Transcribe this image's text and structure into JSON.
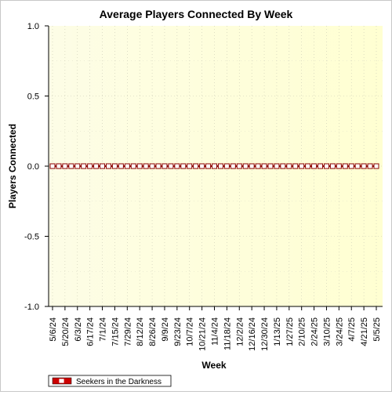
{
  "chart_data": {
    "type": "line",
    "title": "Average Players Connected By Week",
    "xlabel": "Week",
    "ylabel": "Players Connected",
    "ylim": [
      -1.0,
      1.0
    ],
    "y_ticks": [
      "1.0",
      "0.5",
      "0.0",
      "-0.5",
      "-1.0"
    ],
    "y_tick_values": [
      1.0,
      0.5,
      0.0,
      -0.5,
      -1.0
    ],
    "x_tick_labels": [
      "5/6/24",
      "5/20/24",
      "6/3/24",
      "6/17/24",
      "7/1/24",
      "7/15/24",
      "7/29/24",
      "8/12/24",
      "8/26/24",
      "9/9/24",
      "9/23/24",
      "10/7/24",
      "10/21/24",
      "11/4/24",
      "11/18/24",
      "12/2/24",
      "12/16/24",
      "12/30/24",
      "1/13/25",
      "1/27/25",
      "2/10/25",
      "2/24/25",
      "3/10/25",
      "3/24/25",
      "4/7/25",
      "4/21/25",
      "5/5/25"
    ],
    "grid": true,
    "legend_position": "bottom-left",
    "series": [
      {
        "name": "Seekers in the Darkness",
        "color": "#cc0000",
        "x": [
          "5/6/24",
          "5/13/24",
          "5/20/24",
          "5/27/24",
          "6/3/24",
          "6/10/24",
          "6/17/24",
          "6/24/24",
          "7/1/24",
          "7/8/24",
          "7/15/24",
          "7/22/24",
          "7/29/24",
          "8/5/24",
          "8/12/24",
          "8/19/24",
          "8/26/24",
          "9/2/24",
          "9/9/24",
          "9/16/24",
          "9/23/24",
          "9/30/24",
          "10/7/24",
          "10/14/24",
          "10/21/24",
          "10/28/24",
          "11/4/24",
          "11/11/24",
          "11/18/24",
          "11/25/24",
          "12/2/24",
          "12/9/24",
          "12/16/24",
          "12/23/24",
          "12/30/24",
          "1/6/25",
          "1/13/25",
          "1/20/25",
          "1/27/25",
          "2/3/25",
          "2/10/25",
          "2/17/25",
          "2/24/25",
          "3/3/25",
          "3/10/25",
          "3/17/25",
          "3/24/25",
          "3/31/25",
          "4/7/25",
          "4/14/25",
          "4/21/25",
          "4/28/25",
          "5/5/25"
        ],
        "values": [
          0,
          0,
          0,
          0,
          0,
          0,
          0,
          0,
          0,
          0,
          0,
          0,
          0,
          0,
          0,
          0,
          0,
          0,
          0,
          0,
          0,
          0,
          0,
          0,
          0,
          0,
          0,
          0,
          0,
          0,
          0,
          0,
          0,
          0,
          0,
          0,
          0,
          0,
          0,
          0,
          0,
          0,
          0,
          0,
          0,
          0,
          0,
          0,
          0,
          0,
          0,
          0,
          0
        ]
      }
    ]
  }
}
